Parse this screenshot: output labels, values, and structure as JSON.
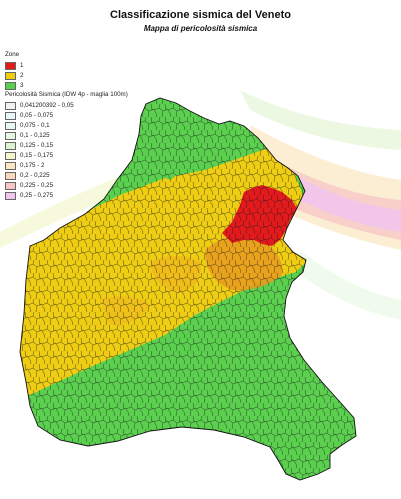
{
  "title": "Classificazione sismica del Veneto",
  "subtitle": "Mappa di pericolosità sismica",
  "legend": {
    "zone_heading": "Zone",
    "zones": [
      {
        "label": "1",
        "color": "#e21a1c"
      },
      {
        "label": "2",
        "color": "#eecd12"
      },
      {
        "label": "3",
        "color": "#5ad04e"
      }
    ],
    "hazard_heading": "Pericolosità Sismica (IDW 4p - maglia 100m)",
    "hazard_classes": [
      {
        "label": "0,041200392 - 0,05",
        "color": "#f2f2ee"
      },
      {
        "label": "0,05 - 0,075",
        "color": "#e7f6fa"
      },
      {
        "label": "0,075 - 0,1",
        "color": "#e8f8f3"
      },
      {
        "label": "0,1 - 0,125",
        "color": "#e6f8e2"
      },
      {
        "label": "0,125 - 0,15",
        "color": "#dff3cf"
      },
      {
        "label": "0,15 - 0,175",
        "color": "#f3f6cd"
      },
      {
        "label": "0,175 - 2",
        "color": "#fbe8c4"
      },
      {
        "label": "0,2 - 0,225",
        "color": "#fbd8bd"
      },
      {
        "label": "0,225 - 0,25",
        "color": "#f8c6c6"
      },
      {
        "label": "0,25 - 0,275",
        "color": "#f1c4ef"
      }
    ]
  }
}
